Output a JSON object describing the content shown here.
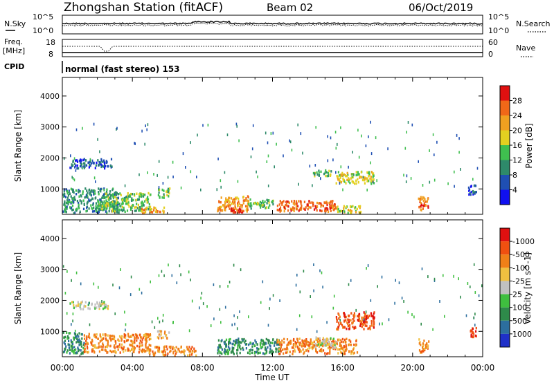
{
  "header": {
    "station": "Zhongshan Station (fitACF)",
    "beam": "Beam 02",
    "date": "06/Oct/2019"
  },
  "noise_panel": {
    "left_label": "N.Sky",
    "right_label": "N.Search",
    "y_ticks": [
      "10^5",
      "10^0"
    ]
  },
  "freq_panel": {
    "left_label_line1": "Freq.",
    "left_label_line2": "[MHz]",
    "left_ticks": [
      "18",
      "8"
    ],
    "right_label": "Nave",
    "right_ticks": [
      "60",
      "0"
    ]
  },
  "cpid": {
    "label": "CPID",
    "mode": "normal (fast stereo) 153"
  },
  "chart_data": [
    {
      "type": "heatmap",
      "name": "power",
      "ylabel": "Slant Range [km]",
      "yticks": [
        1000,
        2000,
        3000,
        4000
      ],
      "ylim": [
        180,
        4600
      ],
      "xlim": [
        0,
        24
      ],
      "colorbar": {
        "label": "Power [dB]",
        "ticks": [
          "4",
          "8",
          "12",
          "16",
          "20",
          "24",
          "28"
        ],
        "colors": [
          "#1010f0",
          "#1f4fb3",
          "#2e8a6a",
          "#3fbf4f",
          "#e3d020",
          "#f0a020",
          "#f06818",
          "#e01010"
        ]
      },
      "regions": [
        {
          "t0": 0.0,
          "t1": 3.2,
          "r0": 250,
          "r1": 1050,
          "level": 2
        },
        {
          "t0": 0.4,
          "t1": 2.8,
          "r0": 1700,
          "r1": 2000,
          "level": 1
        },
        {
          "t0": 2.0,
          "t1": 5.0,
          "r0": 300,
          "r1": 900,
          "level": 3
        },
        {
          "t0": 4.5,
          "t1": 5.8,
          "r0": 250,
          "r1": 450,
          "level": 5
        },
        {
          "t0": 5.4,
          "t1": 6.1,
          "r0": 750,
          "r1": 1050,
          "level": 3
        },
        {
          "t0": 8.8,
          "t1": 10.6,
          "r0": 300,
          "r1": 800,
          "level": 5
        },
        {
          "t0": 9.6,
          "t1": 10.4,
          "r0": 280,
          "r1": 420,
          "level": 7
        },
        {
          "t0": 10.6,
          "t1": 12.0,
          "r0": 400,
          "r1": 700,
          "level": 3
        },
        {
          "t0": 12.2,
          "t1": 15.6,
          "r0": 300,
          "r1": 650,
          "level": 6
        },
        {
          "t0": 15.6,
          "t1": 17.0,
          "r0": 250,
          "r1": 500,
          "level": 4
        },
        {
          "t0": 14.3,
          "t1": 15.4,
          "r0": 1450,
          "r1": 1650,
          "level": 3
        },
        {
          "t0": 15.6,
          "t1": 17.8,
          "r0": 1200,
          "r1": 1600,
          "level": 4
        },
        {
          "t0": 20.3,
          "t1": 20.9,
          "r0": 350,
          "r1": 800,
          "level": 6
        },
        {
          "t0": 23.1,
          "t1": 23.6,
          "r0": 850,
          "r1": 1150,
          "level": 1
        }
      ]
    },
    {
      "type": "heatmap",
      "name": "velocity",
      "xlabel": "Time UT",
      "ylabel": "Slant Range [km]",
      "xticks": [
        "00:00",
        "04:00",
        "08:00",
        "12:00",
        "16:00",
        "20:00",
        "00:00"
      ],
      "yticks": [
        1000,
        2000,
        3000,
        4000
      ],
      "ylim": [
        180,
        4600
      ],
      "xlim": [
        0,
        24
      ],
      "colorbar": {
        "label": "Velocity [m s^-1]",
        "ticks": [
          "1000",
          "500",
          "100",
          "25",
          "-25",
          "-100",
          "-500",
          "-1000"
        ],
        "colors": [
          "#1f30c8",
          "#2c6e9e",
          "#2e8a4a",
          "#3fbf3f",
          "#c0c0c0",
          "#f0c040",
          "#f08018",
          "#f05010",
          "#e01010"
        ]
      },
      "regions": [
        {
          "t0": 0.0,
          "t1": 1.2,
          "r0": 300,
          "r1": 1000,
          "level": 2
        },
        {
          "t0": 1.2,
          "t1": 5.0,
          "r0": 350,
          "r1": 950,
          "level": 6
        },
        {
          "t0": 4.8,
          "t1": 7.6,
          "r0": 250,
          "r1": 550,
          "level": 6
        },
        {
          "t0": 0.4,
          "t1": 2.6,
          "r0": 1750,
          "r1": 2000,
          "level": 4
        },
        {
          "t0": 5.4,
          "t1": 6.1,
          "r0": 800,
          "r1": 1050,
          "level": 5
        },
        {
          "t0": 8.8,
          "t1": 12.4,
          "r0": 300,
          "r1": 800,
          "level": 2
        },
        {
          "t0": 12.2,
          "t1": 16.8,
          "r0": 300,
          "r1": 800,
          "level": 6
        },
        {
          "t0": 14.4,
          "t1": 15.6,
          "r0": 500,
          "r1": 850,
          "level": 4
        },
        {
          "t0": 15.6,
          "t1": 17.8,
          "r0": 1100,
          "r1": 1650,
          "level": 7
        },
        {
          "t0": 20.3,
          "t1": 20.9,
          "r0": 350,
          "r1": 800,
          "level": 6
        },
        {
          "t0": 23.2,
          "t1": 23.6,
          "r0": 850,
          "r1": 1150,
          "level": 7
        }
      ]
    }
  ]
}
